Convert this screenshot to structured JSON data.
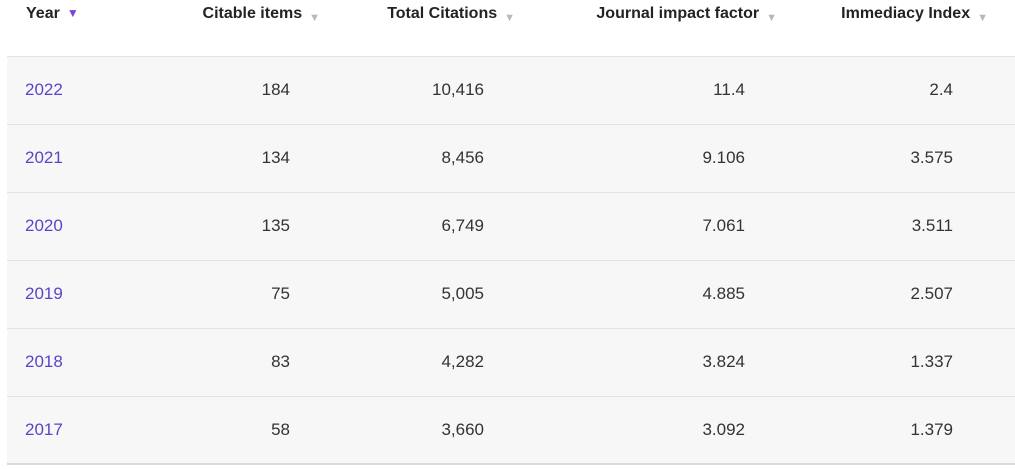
{
  "header": {
    "columns": [
      {
        "label": "Year",
        "sorted": true,
        "sort_direction": "desc"
      },
      {
        "label": "Citable items",
        "sorted": false
      },
      {
        "label": "Total Citations",
        "sorted": false
      },
      {
        "label": "Journal impact factor",
        "sorted": false
      },
      {
        "label": "Immediacy Index",
        "sorted": false
      }
    ]
  },
  "icons": {
    "sort_desc_active": "▼",
    "sort_desc_inactive": "▼"
  },
  "colors": {
    "link_purple": "#5846c8",
    "sort_arrow_active": "#7a45d8",
    "sort_arrow_inactive": "#b9b9b9",
    "row_background": "#f7f7f8",
    "row_border": "#e2e2e2",
    "header_text": "#232323",
    "cell_text": "#333333"
  },
  "rows": [
    {
      "year": "2022",
      "citable_items": "184",
      "total_citations": "10,416",
      "journal_impact_factor": "11.4",
      "immediacy_index": "2.4"
    },
    {
      "year": "2021",
      "citable_items": "134",
      "total_citations": "8,456",
      "journal_impact_factor": "9.106",
      "immediacy_index": "3.575"
    },
    {
      "year": "2020",
      "citable_items": "135",
      "total_citations": "6,749",
      "journal_impact_factor": "7.061",
      "immediacy_index": "3.511"
    },
    {
      "year": "2019",
      "citable_items": "75",
      "total_citations": "5,005",
      "journal_impact_factor": "4.885",
      "immediacy_index": "2.507"
    },
    {
      "year": "2018",
      "citable_items": "83",
      "total_citations": "4,282",
      "journal_impact_factor": "3.824",
      "immediacy_index": "1.337"
    },
    {
      "year": "2017",
      "citable_items": "58",
      "total_citations": "3,660",
      "journal_impact_factor": "3.092",
      "immediacy_index": "1.379"
    }
  ]
}
